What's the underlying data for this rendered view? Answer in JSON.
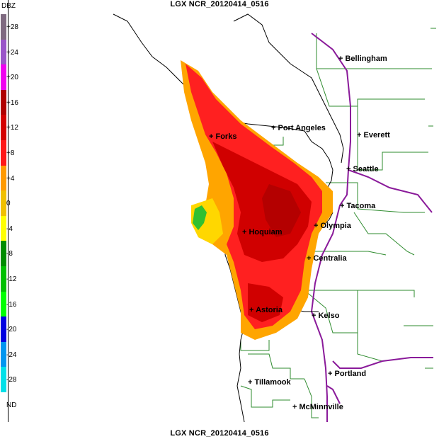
{
  "title": "LGX NCR_20120414_0516",
  "title_bottom": "LGX NCR_20120414_0516",
  "legend": {
    "unit": "DBZ",
    "entries": [
      {
        "label": "+28",
        "color": "#7f6a80"
      },
      {
        "label": "+24",
        "color": "#9a55c8"
      },
      {
        "label": "+20",
        "color": "#f000f0"
      },
      {
        "label": "+16",
        "color": "#b00000"
      },
      {
        "label": "+12",
        "color": "#d40000"
      },
      {
        "label": "+8",
        "color": "#ff1818"
      },
      {
        "label": "+4",
        "color": "#ff9a00"
      },
      {
        "label": "0",
        "color": "#f0c000"
      },
      {
        "label": "-4",
        "color": "#ffff00"
      },
      {
        "label": "-8",
        "color": "#008c00"
      },
      {
        "label": "-12",
        "color": "#00c000"
      },
      {
        "label": "-16",
        "color": "#00ff00"
      },
      {
        "label": "-20",
        "color": "#0000e0"
      },
      {
        "label": "-24",
        "color": "#0096f0"
      },
      {
        "label": "-28",
        "color": "#00e0e8"
      },
      {
        "label": "ND",
        "color": "#ffffff"
      }
    ]
  },
  "cities": [
    {
      "name": "Bellingham"
    },
    {
      "name": "Port Angeles"
    },
    {
      "name": "Forks"
    },
    {
      "name": "Everett"
    },
    {
      "name": "Seattle"
    },
    {
      "name": "Tacoma"
    },
    {
      "name": "Olympia"
    },
    {
      "name": "Hoquiam"
    },
    {
      "name": "Centralia"
    },
    {
      "name": "Astoria"
    },
    {
      "name": "Kelso"
    },
    {
      "name": "Portland"
    },
    {
      "name": "Tillamook"
    },
    {
      "name": "McMinnville"
    }
  ],
  "colors": {
    "border_county": "#2e8b2e",
    "highway": "#8a1a9a",
    "coastline": "#000000"
  }
}
